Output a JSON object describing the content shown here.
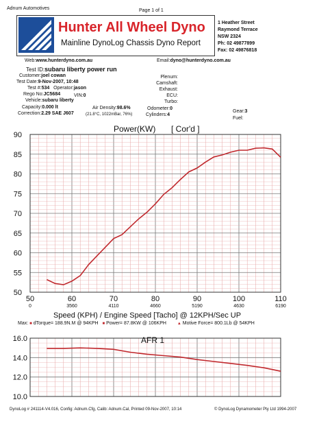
{
  "header": {
    "company": "Adnum Automotives",
    "page": "Page 1 of 1",
    "brand_title": "Hunter All Wheel Dyno",
    "brand_subtitle": "Mainline DynoLog Chassis Dyno Report",
    "address": [
      "1 Heather Street",
      "Raymond Terrace",
      "NSW  2324",
      "Ph: 02 49877899",
      "Fax: 02 49876818"
    ],
    "web": "www.hunterdyno.com.au",
    "email": "dyno@hunterdyno.com.au",
    "web_label": "Web:",
    "email_label": "Email:"
  },
  "details": {
    "test_id_label": "Test ID:",
    "test_id": "subaru liberty power run",
    "customer_label": "Customer:",
    "customer": "joel cowan",
    "test_date_label": "Test Date:",
    "test_date": "9-Nov-2007, 10:48",
    "test_no_label": "Test #:",
    "test_no": "534",
    "operator_label": "Operator:",
    "operator": "jason",
    "rego_label": "Rego No:",
    "rego": "JC5684",
    "vin_label": "VIN:",
    "vin": "0",
    "vehicle_label": "Vehicle:",
    "vehicle": "subaru liberty",
    "capacity_label": "Capacity:",
    "capacity": "0.000 lt",
    "air_density_label": "Air Density:",
    "air_density": "98.6%",
    "correction_label": "Correction:",
    "correction": "2.29 SAE J607",
    "conditions": "(21.8°C, 1022mBar, 76%)",
    "plenum_label": "Plenum:",
    "camshaft_label": "Camshaft:",
    "exhaust_label": "Exhaust:",
    "ecu_label": "ECU:",
    "turbo_label": "Turbo:",
    "odometer_label": "Odometer:",
    "odometer": "0",
    "cylinders_label": "Cylinders:",
    "cylinders": "4",
    "gear_label": "Gear:",
    "gear": "3",
    "fuel_label": "Fuel:"
  },
  "summary": {
    "max_label": "Max:",
    "torque": "dTorque= 188.9N.M @ 94KPH",
    "power": "Power= 87.8KW @ 106KPH",
    "motive": "Motive Force= 800.1Lb @ 54KPH"
  },
  "footer": {
    "left": "DynoLog # 241114-V4.016, Config: Adnum.Cfg, Calib: Adnum.Cal, Printed 09-Nov-2007, 10:14",
    "right": "© DynoLog Dynamometer Pty Ltd 1994-2007"
  },
  "colors": {
    "accent": "#d8242a",
    "trace": "#c0282d",
    "grid": "#e7a3a3",
    "logo_blue": "#1d4e9a"
  },
  "chart_data": [
    {
      "type": "line",
      "title": "Power(KW)",
      "subtitle": "[ Cor'd ]",
      "xlabel": "Speed (KPH) / Engine Speed [Tacho] @ 12KPH/Sec UP",
      "x_ticks": [
        {
          "speed": "50",
          "rpm": "0"
        },
        {
          "speed": "60",
          "rpm": "3560"
        },
        {
          "speed": "70",
          "rpm": "4110"
        },
        {
          "speed": "80",
          "rpm": "4660"
        },
        {
          "speed": "90",
          "rpm": "5190"
        },
        {
          "speed": "100",
          "rpm": "4630"
        },
        {
          "speed": "110",
          "rpm": "6190"
        }
      ],
      "y_ticks": [
        "90",
        "85",
        "80",
        "75",
        "70",
        "65",
        "60",
        "55",
        "50"
      ],
      "xlim": [
        50,
        110
      ],
      "ylim": [
        50,
        90
      ],
      "x": [
        54,
        56,
        58,
        60,
        62,
        64,
        66,
        68,
        70,
        72,
        74,
        76,
        78,
        80,
        82,
        84,
        86,
        88,
        90,
        92,
        94,
        96,
        98,
        100,
        102,
        104,
        106,
        108,
        110
      ],
      "y": [
        53.2,
        52.2,
        51.9,
        52.8,
        54.2,
        57.0,
        59.2,
        61.4,
        63.6,
        64.6,
        66.6,
        68.6,
        70.3,
        72.4,
        74.8,
        76.5,
        78.6,
        80.5,
        81.5,
        83.0,
        84.3,
        84.8,
        85.5,
        86.0,
        86.0,
        86.5,
        86.6,
        86.3,
        84.2
      ]
    },
    {
      "type": "line",
      "title": "AFR  1",
      "y_ticks": [
        "16.0",
        "14.0",
        "12.0",
        "10.0"
      ],
      "xlim": [
        50,
        110
      ],
      "ylim": [
        10,
        16
      ],
      "x": [
        54,
        58,
        62,
        66,
        70,
        74,
        78,
        82,
        86,
        90,
        94,
        98,
        102,
        106,
        110
      ],
      "y": [
        14.95,
        14.95,
        15.0,
        14.95,
        14.85,
        14.55,
        14.35,
        14.2,
        14.05,
        13.8,
        13.6,
        13.4,
        13.2,
        12.95,
        12.6
      ]
    }
  ]
}
